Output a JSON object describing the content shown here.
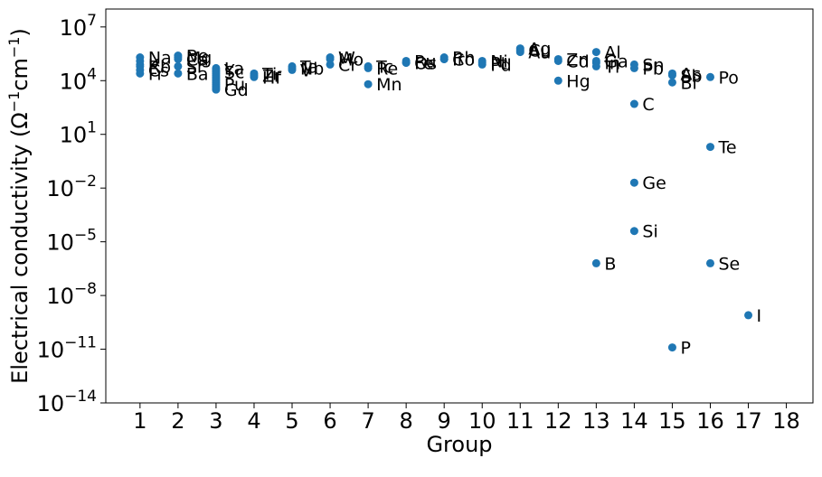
{
  "chart_data": {
    "type": "scatter",
    "title": "",
    "xlabel": "Group",
    "ylabel_main": "Electrical conductivity (Ω",
    "ylabel_sup1": "−1",
    "ylabel_mid": "cm",
    "ylabel_sup2": "−1",
    "ylabel_end": ")",
    "xscale": "linear",
    "yscale": "log",
    "xlim": [
      0.1,
      18.7
    ],
    "ylim_exp": [
      -14,
      8
    ],
    "xticks": [
      "1",
      "2",
      "3",
      "4",
      "5",
      "6",
      "7",
      "8",
      "9",
      "10",
      "11",
      "12",
      "13",
      "14",
      "15",
      "16",
      "17",
      "18"
    ],
    "yticks": [
      {
        "base": "10",
        "exp": "−14",
        "value": -14
      },
      {
        "base": "10",
        "exp": "−11",
        "value": -11
      },
      {
        "base": "10",
        "exp": "−8",
        "value": -8
      },
      {
        "base": "10",
        "exp": "−5",
        "value": -5
      },
      {
        "base": "10",
        "exp": "−2",
        "value": -2
      },
      {
        "base": "10",
        "exp": "1",
        "value": 1
      },
      {
        "base": "10",
        "exp": "4",
        "value": 4
      },
      {
        "base": "10",
        "exp": "7",
        "value": 7
      }
    ],
    "marker_color": "#1f77b4",
    "grid": false,
    "legend": "none",
    "points": [
      {
        "x": 1,
        "log10y": 5.3,
        "label": "Na"
      },
      {
        "x": 1,
        "log10y": 5.1,
        "label": ""
      },
      {
        "x": 1,
        "log10y": 4.9,
        "label": "K"
      },
      {
        "x": 1,
        "log10y": 4.8,
        "label": "Rb"
      },
      {
        "x": 1,
        "log10y": 4.6,
        "label": "Cs"
      },
      {
        "x": 1,
        "log10y": 4.4,
        "label": "Fr"
      },
      {
        "x": 2,
        "log10y": 5.4,
        "label": "Be"
      },
      {
        "x": 2,
        "log10y": 5.3,
        "label": "Mg"
      },
      {
        "x": 2,
        "log10y": 5.2,
        "label": "Ca"
      },
      {
        "x": 2,
        "log10y": 4.8,
        "label": "Sr"
      },
      {
        "x": 2,
        "log10y": 4.4,
        "label": "Ba"
      },
      {
        "x": 3,
        "log10y": 4.7,
        "label": "La"
      },
      {
        "x": 3,
        "log10y": 4.6,
        "label": "Y"
      },
      {
        "x": 3,
        "log10y": 4.5,
        "label": "Sc"
      },
      {
        "x": 3,
        "log10y": 4.4,
        "label": ""
      },
      {
        "x": 3,
        "log10y": 4.3,
        "label": ""
      },
      {
        "x": 3,
        "log10y": 4.2,
        "label": ""
      },
      {
        "x": 3,
        "log10y": 4.1,
        "label": ""
      },
      {
        "x": 3,
        "log10y": 4.0,
        "label": ""
      },
      {
        "x": 3,
        "log10y": 3.9,
        "label": ""
      },
      {
        "x": 3,
        "log10y": 3.8,
        "label": "Pu"
      },
      {
        "x": 3,
        "log10y": 3.7,
        "label": ""
      },
      {
        "x": 3,
        "log10y": 3.6,
        "label": ""
      },
      {
        "x": 3,
        "log10y": 3.5,
        "label": "Gd"
      },
      {
        "x": 4,
        "log10y": 4.4,
        "label": "Ti"
      },
      {
        "x": 4,
        "log10y": 4.3,
        "label": "Zr"
      },
      {
        "x": 4,
        "log10y": 4.2,
        "label": "Hf"
      },
      {
        "x": 5,
        "log10y": 4.8,
        "label": "Ta"
      },
      {
        "x": 5,
        "log10y": 4.7,
        "label": "Nb"
      },
      {
        "x": 5,
        "log10y": 4.6,
        "label": "V"
      },
      {
        "x": 6,
        "log10y": 5.3,
        "label": "W"
      },
      {
        "x": 6,
        "log10y": 5.2,
        "label": "Mo"
      },
      {
        "x": 6,
        "log10y": 4.9,
        "label": "Cr"
      },
      {
        "x": 7,
        "log10y": 4.8,
        "label": "Tc"
      },
      {
        "x": 7,
        "log10y": 4.7,
        "label": "Re"
      },
      {
        "x": 7,
        "log10y": 3.8,
        "label": "Mn"
      },
      {
        "x": 8,
        "log10y": 5.1,
        "label": "Ru"
      },
      {
        "x": 8,
        "log10y": 5.0,
        "label": "Os"
      },
      {
        "x": 8,
        "log10y": 5.0,
        "label": "Fe"
      },
      {
        "x": 9,
        "log10y": 5.3,
        "label": "Rh"
      },
      {
        "x": 9,
        "log10y": 5.2,
        "label": "Ir"
      },
      {
        "x": 9,
        "log10y": 5.2,
        "label": "Co"
      },
      {
        "x": 10,
        "log10y": 5.1,
        "label": "Ni"
      },
      {
        "x": 10,
        "log10y": 5.0,
        "label": "Pt"
      },
      {
        "x": 10,
        "log10y": 4.9,
        "label": "Pd"
      },
      {
        "x": 11,
        "log10y": 5.8,
        "label": "Ag"
      },
      {
        "x": 11,
        "log10y": 5.7,
        "label": "Cu"
      },
      {
        "x": 11,
        "log10y": 5.6,
        "label": "Au"
      },
      {
        "x": 12,
        "log10y": 5.2,
        "label": "Zn"
      },
      {
        "x": 12,
        "log10y": 5.1,
        "label": "Cd"
      },
      {
        "x": 12,
        "log10y": 4.0,
        "label": "Hg"
      },
      {
        "x": 13,
        "log10y": 5.6,
        "label": "Al"
      },
      {
        "x": 13,
        "log10y": 5.1,
        "label": "Ga"
      },
      {
        "x": 13,
        "log10y": 5.0,
        "label": "In"
      },
      {
        "x": 13,
        "log10y": 4.8,
        "label": "Tl"
      },
      {
        "x": 14,
        "log10y": 4.9,
        "label": "Sn"
      },
      {
        "x": 14,
        "log10y": 4.7,
        "label": "Pb"
      },
      {
        "x": 14,
        "log10y": 2.7,
        "label": "C"
      },
      {
        "x": 14,
        "log10y": -1.7,
        "label": "Ge"
      },
      {
        "x": 14,
        "log10y": -4.4,
        "label": "Si"
      },
      {
        "x": 13,
        "log10y": -6.2,
        "label": "B"
      },
      {
        "x": 15,
        "log10y": 4.4,
        "label": "As"
      },
      {
        "x": 15,
        "log10y": 4.3,
        "label": "Sb"
      },
      {
        "x": 15,
        "log10y": 3.9,
        "label": "Bi"
      },
      {
        "x": 15,
        "log10y": -10.9,
        "label": "P"
      },
      {
        "x": 16,
        "log10y": 4.2,
        "label": "Po"
      },
      {
        "x": 16,
        "log10y": 0.3,
        "label": "Te"
      },
      {
        "x": 16,
        "log10y": -6.2,
        "label": "Se"
      },
      {
        "x": 17,
        "log10y": -9.1,
        "label": "I"
      }
    ]
  }
}
